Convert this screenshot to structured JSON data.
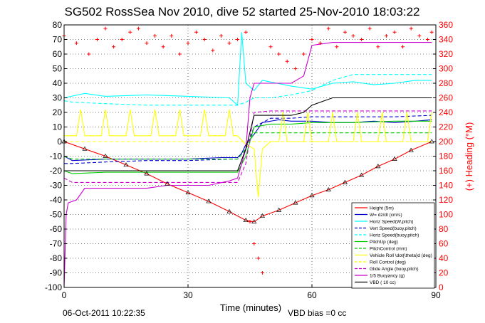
{
  "chart_data": {
    "type": "line",
    "title": "SG502 RossSea Nov 2010, dive 52 started 25-Nov-2010 18:03:22",
    "xlabel": "Time (minutes)",
    "ylabel_right": "(+) Heading (°M)",
    "xlim": [
      0,
      90
    ],
    "ylim": [
      -100,
      80
    ],
    "ylim_right": [
      0,
      360
    ],
    "x_ticks": [
      0,
      30,
      60,
      90
    ],
    "y_ticks": [
      -100,
      -90,
      -80,
      -70,
      -60,
      -50,
      -40,
      -30,
      -20,
      -10,
      0,
      10,
      20,
      30,
      40,
      50,
      60,
      70,
      80
    ],
    "y_ticks_right": [
      0,
      20,
      40,
      60,
      80,
      100,
      120,
      140,
      160,
      180,
      200,
      220,
      240,
      260,
      280,
      300,
      320,
      340,
      360
    ],
    "grid": true,
    "legend_position": "lower-right",
    "colors": {
      "depth": "#ff0000",
      "w": "#0000cc",
      "horiz_speed": "#00ffff",
      "pitch": "#00cc00",
      "roll": "#ffff00",
      "buoyancy": "#cc00cc",
      "vbd": "#000000",
      "heading": "#ff0000",
      "right_axis": "#ff0000"
    },
    "series": [
      {
        "name": "Height (5m)",
        "color": "#ff0000",
        "style": "solid",
        "x": [
          0,
          5,
          10,
          15,
          20,
          25,
          30,
          35,
          40,
          44,
          46,
          48,
          52,
          56,
          60,
          64,
          68,
          72,
          76,
          80,
          84,
          89
        ],
        "values": [
          0,
          -5,
          -10,
          -16,
          -22,
          -29,
          -35,
          -41,
          -48,
          -54,
          -55,
          -51,
          -47,
          -42,
          -37,
          -33,
          -28,
          -23,
          -17,
          -12,
          -6,
          0
        ]
      },
      {
        "name": "W= dz/dt (cm/s)",
        "color": "#0000cc",
        "style": "solid",
        "x": [
          0,
          2,
          10,
          20,
          30,
          38,
          42,
          43,
          44,
          46,
          48,
          50,
          52,
          55,
          60,
          65,
          70,
          75,
          80,
          85,
          89
        ],
        "values": [
          -10,
          -13,
          -12,
          -12,
          -12,
          -11,
          -11,
          -8,
          -2,
          5,
          13,
          14,
          15,
          14,
          14,
          13,
          13,
          14,
          13,
          14,
          15
        ]
      },
      {
        "name": "Horiz Speed(W,pitch)",
        "color": "#00ffff",
        "style": "solid",
        "x": [
          0,
          5,
          10,
          20,
          30,
          40,
          42,
          43,
          44,
          46,
          48,
          55,
          60,
          65,
          70,
          75,
          80,
          85,
          89
        ],
        "values": [
          30,
          33,
          31,
          32,
          31,
          30,
          25,
          75,
          40,
          35,
          42,
          38,
          36,
          40,
          41,
          39,
          40,
          42,
          42
        ]
      },
      {
        "name": "Vert Speed(buoy,pitch)",
        "color": "#0000cc",
        "style": "dashed",
        "x": [
          0,
          2,
          10,
          20,
          30,
          40,
          42,
          44,
          46,
          50,
          55,
          60,
          70,
          80,
          89
        ],
        "values": [
          -15,
          -15,
          -14,
          -13,
          -13,
          -12,
          -12,
          -5,
          10,
          16,
          16,
          17,
          17,
          17,
          18
        ]
      },
      {
        "name": "Horiz Speed(buoy,pitch)",
        "color": "#00ffff",
        "style": "dashed",
        "x": [
          0,
          2,
          10,
          20,
          30,
          40,
          42,
          44,
          46,
          50,
          55,
          60,
          65,
          70,
          80,
          89
        ],
        "values": [
          28,
          27,
          26,
          25,
          25,
          25,
          25,
          27,
          30,
          30,
          32,
          35,
          42,
          46,
          46,
          46
        ]
      },
      {
        "name": "PitchUp (deg)",
        "color": "#00cc00",
        "style": "solid",
        "x": [
          0,
          2,
          10,
          20,
          30,
          40,
          42,
          44,
          46,
          50,
          55,
          60,
          70,
          80,
          89
        ],
        "values": [
          -20,
          -22,
          -21,
          -21,
          -21,
          -21,
          -21,
          -10,
          10,
          12,
          12,
          13,
          13,
          14,
          14
        ]
      },
      {
        "name": "PitchControl (mm)",
        "color": "#00cc00",
        "style": "dashed",
        "x": [
          0,
          2,
          42,
          44,
          46,
          50,
          60,
          70,
          80,
          89
        ],
        "values": [
          -10,
          -12,
          -12,
          -5,
          6,
          6,
          6,
          6,
          6,
          6
        ]
      },
      {
        "name": "Vehicle Roll \\dot{\\theta}d (deg)",
        "color": "#ffff00",
        "style": "solid",
        "x": [
          0,
          3,
          4,
          5,
          9,
          10,
          11,
          15,
          16,
          17,
          21,
          22,
          23,
          27,
          28,
          29,
          33,
          34,
          35,
          39,
          40,
          41,
          42,
          44,
          46,
          47,
          48,
          50,
          52,
          53,
          54,
          56,
          58,
          59,
          60,
          62,
          64,
          65,
          66,
          68,
          70,
          71,
          72,
          74,
          76,
          77,
          78,
          80,
          82,
          83,
          84,
          86,
          88,
          89
        ],
        "values": [
          4,
          4,
          22,
          4,
          4,
          22,
          4,
          4,
          22,
          4,
          4,
          22,
          4,
          4,
          22,
          4,
          4,
          22,
          4,
          4,
          22,
          4,
          4,
          -2,
          -5,
          -38,
          -5,
          0,
          0,
          20,
          0,
          0,
          0,
          20,
          0,
          0,
          0,
          20,
          0,
          0,
          0,
          20,
          0,
          0,
          0,
          20,
          0,
          0,
          0,
          20,
          0,
          0,
          0,
          20
        ]
      },
      {
        "name": "Roll Control (deg)",
        "color": "#ffff00",
        "style": "dashed",
        "x": [
          0,
          42,
          44,
          46,
          89
        ],
        "values": [
          0,
          0,
          0,
          0,
          0
        ]
      },
      {
        "name": "Glide Angle (buoy,pitch)",
        "color": "#cc00cc",
        "style": "dashed",
        "x": [
          0,
          2,
          42,
          44,
          46,
          50,
          89
        ],
        "values": [
          -25,
          -28,
          -28,
          -15,
          20,
          21,
          21
        ]
      },
      {
        "name": "1/5 Buoyancy (g)",
        "color": "#cc00cc",
        "style": "solid",
        "x": [
          0,
          0.5,
          1,
          3,
          5,
          20,
          25,
          35,
          40,
          42,
          44,
          45,
          46,
          48,
          55,
          58,
          60,
          65,
          70,
          89
        ],
        "values": [
          -100,
          -50,
          -42,
          -40,
          -32,
          -32,
          -30,
          -30,
          -27,
          -25,
          -5,
          30,
          40,
          40,
          40,
          45,
          66,
          68,
          68,
          68
        ]
      },
      {
        "name": "VBD ( 10 cc)",
        "color": "#000000",
        "style": "solid",
        "x": [
          0,
          2,
          42,
          44,
          46,
          55,
          58,
          60,
          65,
          89
        ],
        "values": [
          -20,
          -20,
          -20,
          -5,
          18,
          18,
          20,
          25,
          30,
          30
        ]
      }
    ],
    "heading_series": {
      "name": "(+) Heading (°M)",
      "color": "#ff0000",
      "marker": "+",
      "x": [
        0,
        3,
        6,
        8,
        10,
        12,
        14,
        16,
        18,
        20,
        22,
        24,
        26,
        28,
        30,
        32,
        34,
        36,
        38,
        40,
        42,
        44,
        45,
        46,
        47,
        48,
        50,
        52,
        54,
        56,
        58,
        60,
        62,
        64,
        66,
        68,
        70,
        72,
        74,
        76,
        78,
        80,
        82,
        84,
        86,
        88,
        89
      ],
      "values": [
        345,
        335,
        320,
        340,
        355,
        330,
        340,
        350,
        355,
        335,
        345,
        330,
        345,
        320,
        335,
        350,
        340,
        325,
        345,
        335,
        340,
        350,
        90,
        60,
        40,
        20,
        330,
        320,
        310,
        300,
        320,
        340,
        335,
        355,
        330,
        350,
        345,
        340,
        355,
        330,
        345,
        350,
        330,
        355,
        345,
        340,
        350
      ]
    }
  },
  "footer": {
    "date": "06-Oct-2011 10:22:35",
    "vbd_bias": "VBD bias =0 cc"
  }
}
